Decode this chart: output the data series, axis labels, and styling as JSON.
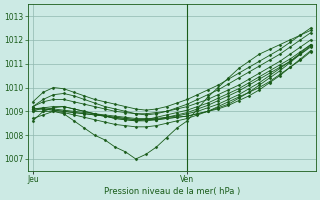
{
  "bg_color": "#cceae4",
  "grid_color": "#90b8b0",
  "line_color": "#1a5c1a",
  "marker_color": "#1a5c1a",
  "xlabel_text": "Pression niveau de la mer( hPa )",
  "xlabel_jeu": "Jeu",
  "xlabel_ven": "Ven",
  "ylim": [
    1006.5,
    1013.5
  ],
  "y_ticks": [
    1007,
    1008,
    1009,
    1010,
    1011,
    1012,
    1013
  ],
  "xlim": [
    0,
    27
  ],
  "jeu_x": 0,
  "ven_x": 15,
  "n_points": 28,
  "series": [
    [
      1008.7,
      1008.85,
      1009.0,
      1008.9,
      1008.6,
      1008.3,
      1008.0,
      1007.8,
      1007.5,
      1007.3,
      1007.0,
      1007.2,
      1007.5,
      1007.9,
      1008.3,
      1008.6,
      1009.1,
      1009.6,
      1010.0,
      1010.4,
      1010.8,
      1011.1,
      1011.4,
      1011.6,
      1011.8,
      1012.0,
      1012.2,
      1012.4
    ],
    [
      1009.0,
      1009.0,
      1009.0,
      1008.95,
      1008.85,
      1008.75,
      1008.65,
      1008.55,
      1008.45,
      1008.4,
      1008.35,
      1008.35,
      1008.4,
      1008.5,
      1008.6,
      1008.7,
      1008.85,
      1009.0,
      1009.2,
      1009.4,
      1009.6,
      1009.8,
      1010.0,
      1010.25,
      1010.55,
      1010.85,
      1011.15,
      1011.5
    ],
    [
      1009.1,
      1009.1,
      1009.05,
      1009.0,
      1008.95,
      1008.9,
      1008.85,
      1008.8,
      1008.75,
      1008.7,
      1008.65,
      1008.65,
      1008.65,
      1008.7,
      1008.75,
      1008.8,
      1008.9,
      1009.0,
      1009.1,
      1009.25,
      1009.45,
      1009.65,
      1009.9,
      1010.2,
      1010.5,
      1010.85,
      1011.2,
      1011.55
    ],
    [
      1009.1,
      1009.1,
      1009.05,
      1009.0,
      1008.95,
      1008.9,
      1008.85,
      1008.8,
      1008.75,
      1008.7,
      1008.65,
      1008.65,
      1008.65,
      1008.7,
      1008.75,
      1008.8,
      1008.9,
      1009.0,
      1009.15,
      1009.3,
      1009.55,
      1009.8,
      1010.1,
      1010.4,
      1010.7,
      1011.05,
      1011.4,
      1011.75
    ],
    [
      1009.1,
      1009.15,
      1009.1,
      1009.05,
      1009.0,
      1008.95,
      1008.9,
      1008.85,
      1008.8,
      1008.75,
      1008.7,
      1008.7,
      1008.7,
      1008.75,
      1008.8,
      1008.9,
      1009.0,
      1009.15,
      1009.3,
      1009.5,
      1009.7,
      1009.95,
      1010.2,
      1010.5,
      1010.8,
      1011.1,
      1011.45,
      1011.8
    ],
    [
      1009.2,
      1009.4,
      1009.5,
      1009.5,
      1009.4,
      1009.3,
      1009.2,
      1009.1,
      1009.0,
      1008.95,
      1008.9,
      1008.9,
      1008.95,
      1009.0,
      1009.1,
      1009.2,
      1009.35,
      1009.5,
      1009.7,
      1009.9,
      1010.1,
      1010.35,
      1010.6,
      1010.85,
      1011.1,
      1011.4,
      1011.7,
      1012.0
    ],
    [
      1009.4,
      1009.8,
      1010.0,
      1009.95,
      1009.8,
      1009.65,
      1009.5,
      1009.4,
      1009.3,
      1009.2,
      1009.1,
      1009.05,
      1009.1,
      1009.2,
      1009.35,
      1009.5,
      1009.7,
      1009.9,
      1010.1,
      1010.35,
      1010.6,
      1010.85,
      1011.1,
      1011.35,
      1011.6,
      1011.9,
      1012.2,
      1012.5
    ],
    [
      1009.2,
      1009.5,
      1009.7,
      1009.75,
      1009.65,
      1009.5,
      1009.35,
      1009.2,
      1009.1,
      1009.0,
      1008.9,
      1008.85,
      1008.9,
      1009.0,
      1009.15,
      1009.3,
      1009.5,
      1009.7,
      1009.9,
      1010.15,
      1010.4,
      1010.65,
      1010.9,
      1011.15,
      1011.4,
      1011.7,
      1012.0,
      1012.3
    ],
    [
      1009.0,
      1009.15,
      1009.2,
      1009.2,
      1009.1,
      1009.0,
      1008.9,
      1008.8,
      1008.7,
      1008.65,
      1008.6,
      1008.6,
      1008.65,
      1008.75,
      1008.85,
      1008.95,
      1009.1,
      1009.25,
      1009.45,
      1009.65,
      1009.85,
      1010.1,
      1010.35,
      1010.6,
      1010.85,
      1011.1,
      1011.4,
      1011.7
    ],
    [
      1008.6,
      1009.0,
      1009.15,
      1009.2,
      1009.1,
      1009.0,
      1008.9,
      1008.8,
      1008.7,
      1008.65,
      1008.6,
      1008.65,
      1008.75,
      1008.85,
      1008.95,
      1009.05,
      1009.2,
      1009.35,
      1009.55,
      1009.75,
      1009.95,
      1010.2,
      1010.45,
      1010.7,
      1010.95,
      1011.2,
      1011.5,
      1011.8
    ]
  ]
}
